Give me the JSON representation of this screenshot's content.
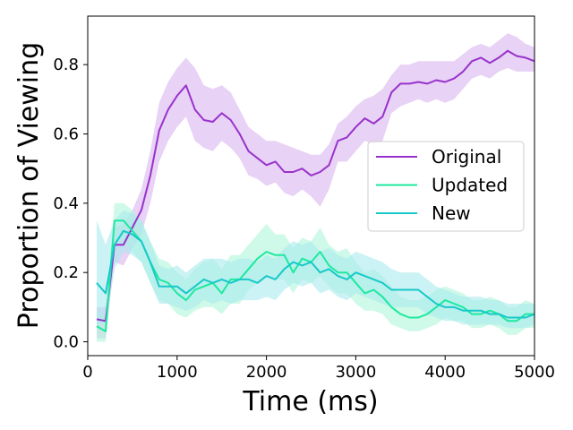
{
  "chart_data": {
    "type": "line",
    "xlabel": "Time (ms)",
    "ylabel": "Proportion of Viewing",
    "xlim": [
      0,
      5000
    ],
    "ylim": [
      -0.04,
      0.94
    ],
    "xticks": [
      0,
      1000,
      2000,
      3000,
      4000,
      5000
    ],
    "xtick_labels": [
      "0",
      "1000",
      "2000",
      "3000",
      "4000",
      "5000"
    ],
    "yticks": [
      0.0,
      0.2,
      0.4,
      0.6,
      0.8
    ],
    "ytick_labels": [
      "0.0",
      "0.2",
      "0.4",
      "0.6",
      "0.8"
    ],
    "grid": false,
    "legend_position": "center-right",
    "x": [
      100,
      200,
      300,
      400,
      500,
      600,
      700,
      800,
      900,
      1000,
      1100,
      1200,
      1300,
      1400,
      1500,
      1600,
      1700,
      1800,
      1900,
      2000,
      2100,
      2200,
      2300,
      2400,
      2500,
      2600,
      2700,
      2800,
      2900,
      3000,
      3100,
      3200,
      3300,
      3400,
      3500,
      3600,
      3700,
      3800,
      3900,
      4000,
      4100,
      4200,
      4300,
      4400,
      4500,
      4600,
      4700,
      4800,
      4900,
      5000
    ],
    "series": [
      {
        "name": "Original",
        "color": "#9932cc",
        "band_color": "#d8b4ef",
        "values": [
          0.065,
          0.06,
          0.28,
          0.28,
          0.33,
          0.38,
          0.48,
          0.61,
          0.67,
          0.71,
          0.74,
          0.67,
          0.64,
          0.635,
          0.66,
          0.64,
          0.6,
          0.55,
          0.53,
          0.51,
          0.52,
          0.49,
          0.49,
          0.5,
          0.48,
          0.49,
          0.51,
          0.58,
          0.59,
          0.62,
          0.645,
          0.63,
          0.65,
          0.72,
          0.745,
          0.745,
          0.75,
          0.745,
          0.755,
          0.75,
          0.76,
          0.78,
          0.81,
          0.82,
          0.805,
          0.82,
          0.84,
          0.825,
          0.82,
          0.81
        ],
        "upper": [
          0.1,
          0.1,
          0.33,
          0.34,
          0.38,
          0.44,
          0.55,
          0.69,
          0.75,
          0.79,
          0.82,
          0.79,
          0.74,
          0.73,
          0.74,
          0.72,
          0.67,
          0.62,
          0.6,
          0.58,
          0.58,
          0.57,
          0.56,
          0.55,
          0.54,
          0.54,
          0.57,
          0.63,
          0.65,
          0.68,
          0.7,
          0.71,
          0.73,
          0.77,
          0.8,
          0.8,
          0.81,
          0.81,
          0.81,
          0.81,
          0.81,
          0.83,
          0.85,
          0.86,
          0.85,
          0.87,
          0.89,
          0.88,
          0.86,
          0.85
        ],
        "lower": [
          0.01,
          0.01,
          0.23,
          0.22,
          0.27,
          0.31,
          0.4,
          0.52,
          0.58,
          0.62,
          0.65,
          0.58,
          0.56,
          0.55,
          0.58,
          0.56,
          0.53,
          0.48,
          0.47,
          0.45,
          0.46,
          0.43,
          0.42,
          0.44,
          0.42,
          0.39,
          0.44,
          0.52,
          0.52,
          0.55,
          0.58,
          0.57,
          0.58,
          0.66,
          0.68,
          0.69,
          0.7,
          0.69,
          0.7,
          0.69,
          0.7,
          0.73,
          0.76,
          0.77,
          0.76,
          0.78,
          0.79,
          0.78,
          0.78,
          0.78
        ]
      },
      {
        "name": "Updated",
        "color": "#1de9a0",
        "band_color": "#aff5d8",
        "values": [
          0.045,
          0.03,
          0.35,
          0.35,
          0.32,
          0.29,
          0.23,
          0.18,
          0.17,
          0.14,
          0.12,
          0.15,
          0.16,
          0.17,
          0.14,
          0.18,
          0.18,
          0.21,
          0.24,
          0.26,
          0.25,
          0.25,
          0.2,
          0.24,
          0.23,
          0.26,
          0.22,
          0.2,
          0.2,
          0.17,
          0.14,
          0.15,
          0.13,
          0.1,
          0.08,
          0.07,
          0.07,
          0.08,
          0.1,
          0.12,
          0.11,
          0.1,
          0.08,
          0.08,
          0.09,
          0.08,
          0.06,
          0.06,
          0.08,
          0.08
        ],
        "upper": [
          0.09,
          0.07,
          0.4,
          0.4,
          0.38,
          0.35,
          0.29,
          0.24,
          0.23,
          0.2,
          0.18,
          0.21,
          0.23,
          0.24,
          0.21,
          0.25,
          0.25,
          0.28,
          0.31,
          0.34,
          0.31,
          0.31,
          0.27,
          0.3,
          0.29,
          0.33,
          0.28,
          0.26,
          0.27,
          0.23,
          0.2,
          0.21,
          0.19,
          0.16,
          0.13,
          0.12,
          0.12,
          0.13,
          0.15,
          0.16,
          0.15,
          0.14,
          0.12,
          0.12,
          0.13,
          0.12,
          0.1,
          0.1,
          0.12,
          0.11
        ],
        "lower": [
          0.0,
          0.0,
          0.29,
          0.29,
          0.26,
          0.23,
          0.17,
          0.12,
          0.11,
          0.08,
          0.07,
          0.09,
          0.1,
          0.1,
          0.08,
          0.11,
          0.11,
          0.15,
          0.17,
          0.19,
          0.18,
          0.18,
          0.14,
          0.18,
          0.17,
          0.19,
          0.16,
          0.14,
          0.14,
          0.11,
          0.09,
          0.09,
          0.08,
          0.05,
          0.04,
          0.03,
          0.03,
          0.04,
          0.05,
          0.07,
          0.06,
          0.06,
          0.04,
          0.04,
          0.05,
          0.04,
          0.02,
          0.02,
          0.04,
          0.04
        ]
      },
      {
        "name": "New",
        "color": "#17c9c9",
        "band_color": "#a8e9ec",
        "values": [
          0.17,
          0.14,
          0.28,
          0.32,
          0.31,
          0.29,
          0.23,
          0.16,
          0.16,
          0.16,
          0.14,
          0.16,
          0.18,
          0.17,
          0.18,
          0.17,
          0.18,
          0.18,
          0.17,
          0.19,
          0.18,
          0.21,
          0.23,
          0.22,
          0.23,
          0.2,
          0.21,
          0.19,
          0.18,
          0.2,
          0.19,
          0.18,
          0.17,
          0.15,
          0.15,
          0.15,
          0.15,
          0.13,
          0.11,
          0.1,
          0.1,
          0.09,
          0.09,
          0.09,
          0.08,
          0.08,
          0.07,
          0.07,
          0.07,
          0.08
        ],
        "upper": [
          0.35,
          0.28,
          0.35,
          0.38,
          0.37,
          0.35,
          0.29,
          0.22,
          0.21,
          0.22,
          0.2,
          0.22,
          0.24,
          0.24,
          0.24,
          0.23,
          0.24,
          0.24,
          0.23,
          0.25,
          0.24,
          0.27,
          0.29,
          0.28,
          0.29,
          0.26,
          0.27,
          0.25,
          0.24,
          0.26,
          0.25,
          0.24,
          0.23,
          0.21,
          0.2,
          0.2,
          0.2,
          0.18,
          0.16,
          0.15,
          0.14,
          0.13,
          0.13,
          0.13,
          0.12,
          0.12,
          0.11,
          0.11,
          0.11,
          0.11
        ],
        "lower": [
          0.05,
          0.05,
          0.21,
          0.26,
          0.25,
          0.23,
          0.17,
          0.11,
          0.11,
          0.1,
          0.09,
          0.1,
          0.12,
          0.11,
          0.12,
          0.11,
          0.12,
          0.12,
          0.12,
          0.13,
          0.12,
          0.15,
          0.17,
          0.16,
          0.17,
          0.14,
          0.15,
          0.13,
          0.12,
          0.14,
          0.13,
          0.12,
          0.11,
          0.1,
          0.1,
          0.1,
          0.1,
          0.08,
          0.07,
          0.06,
          0.06,
          0.05,
          0.05,
          0.05,
          0.05,
          0.05,
          0.04,
          0.04,
          0.04,
          0.05
        ]
      }
    ]
  }
}
